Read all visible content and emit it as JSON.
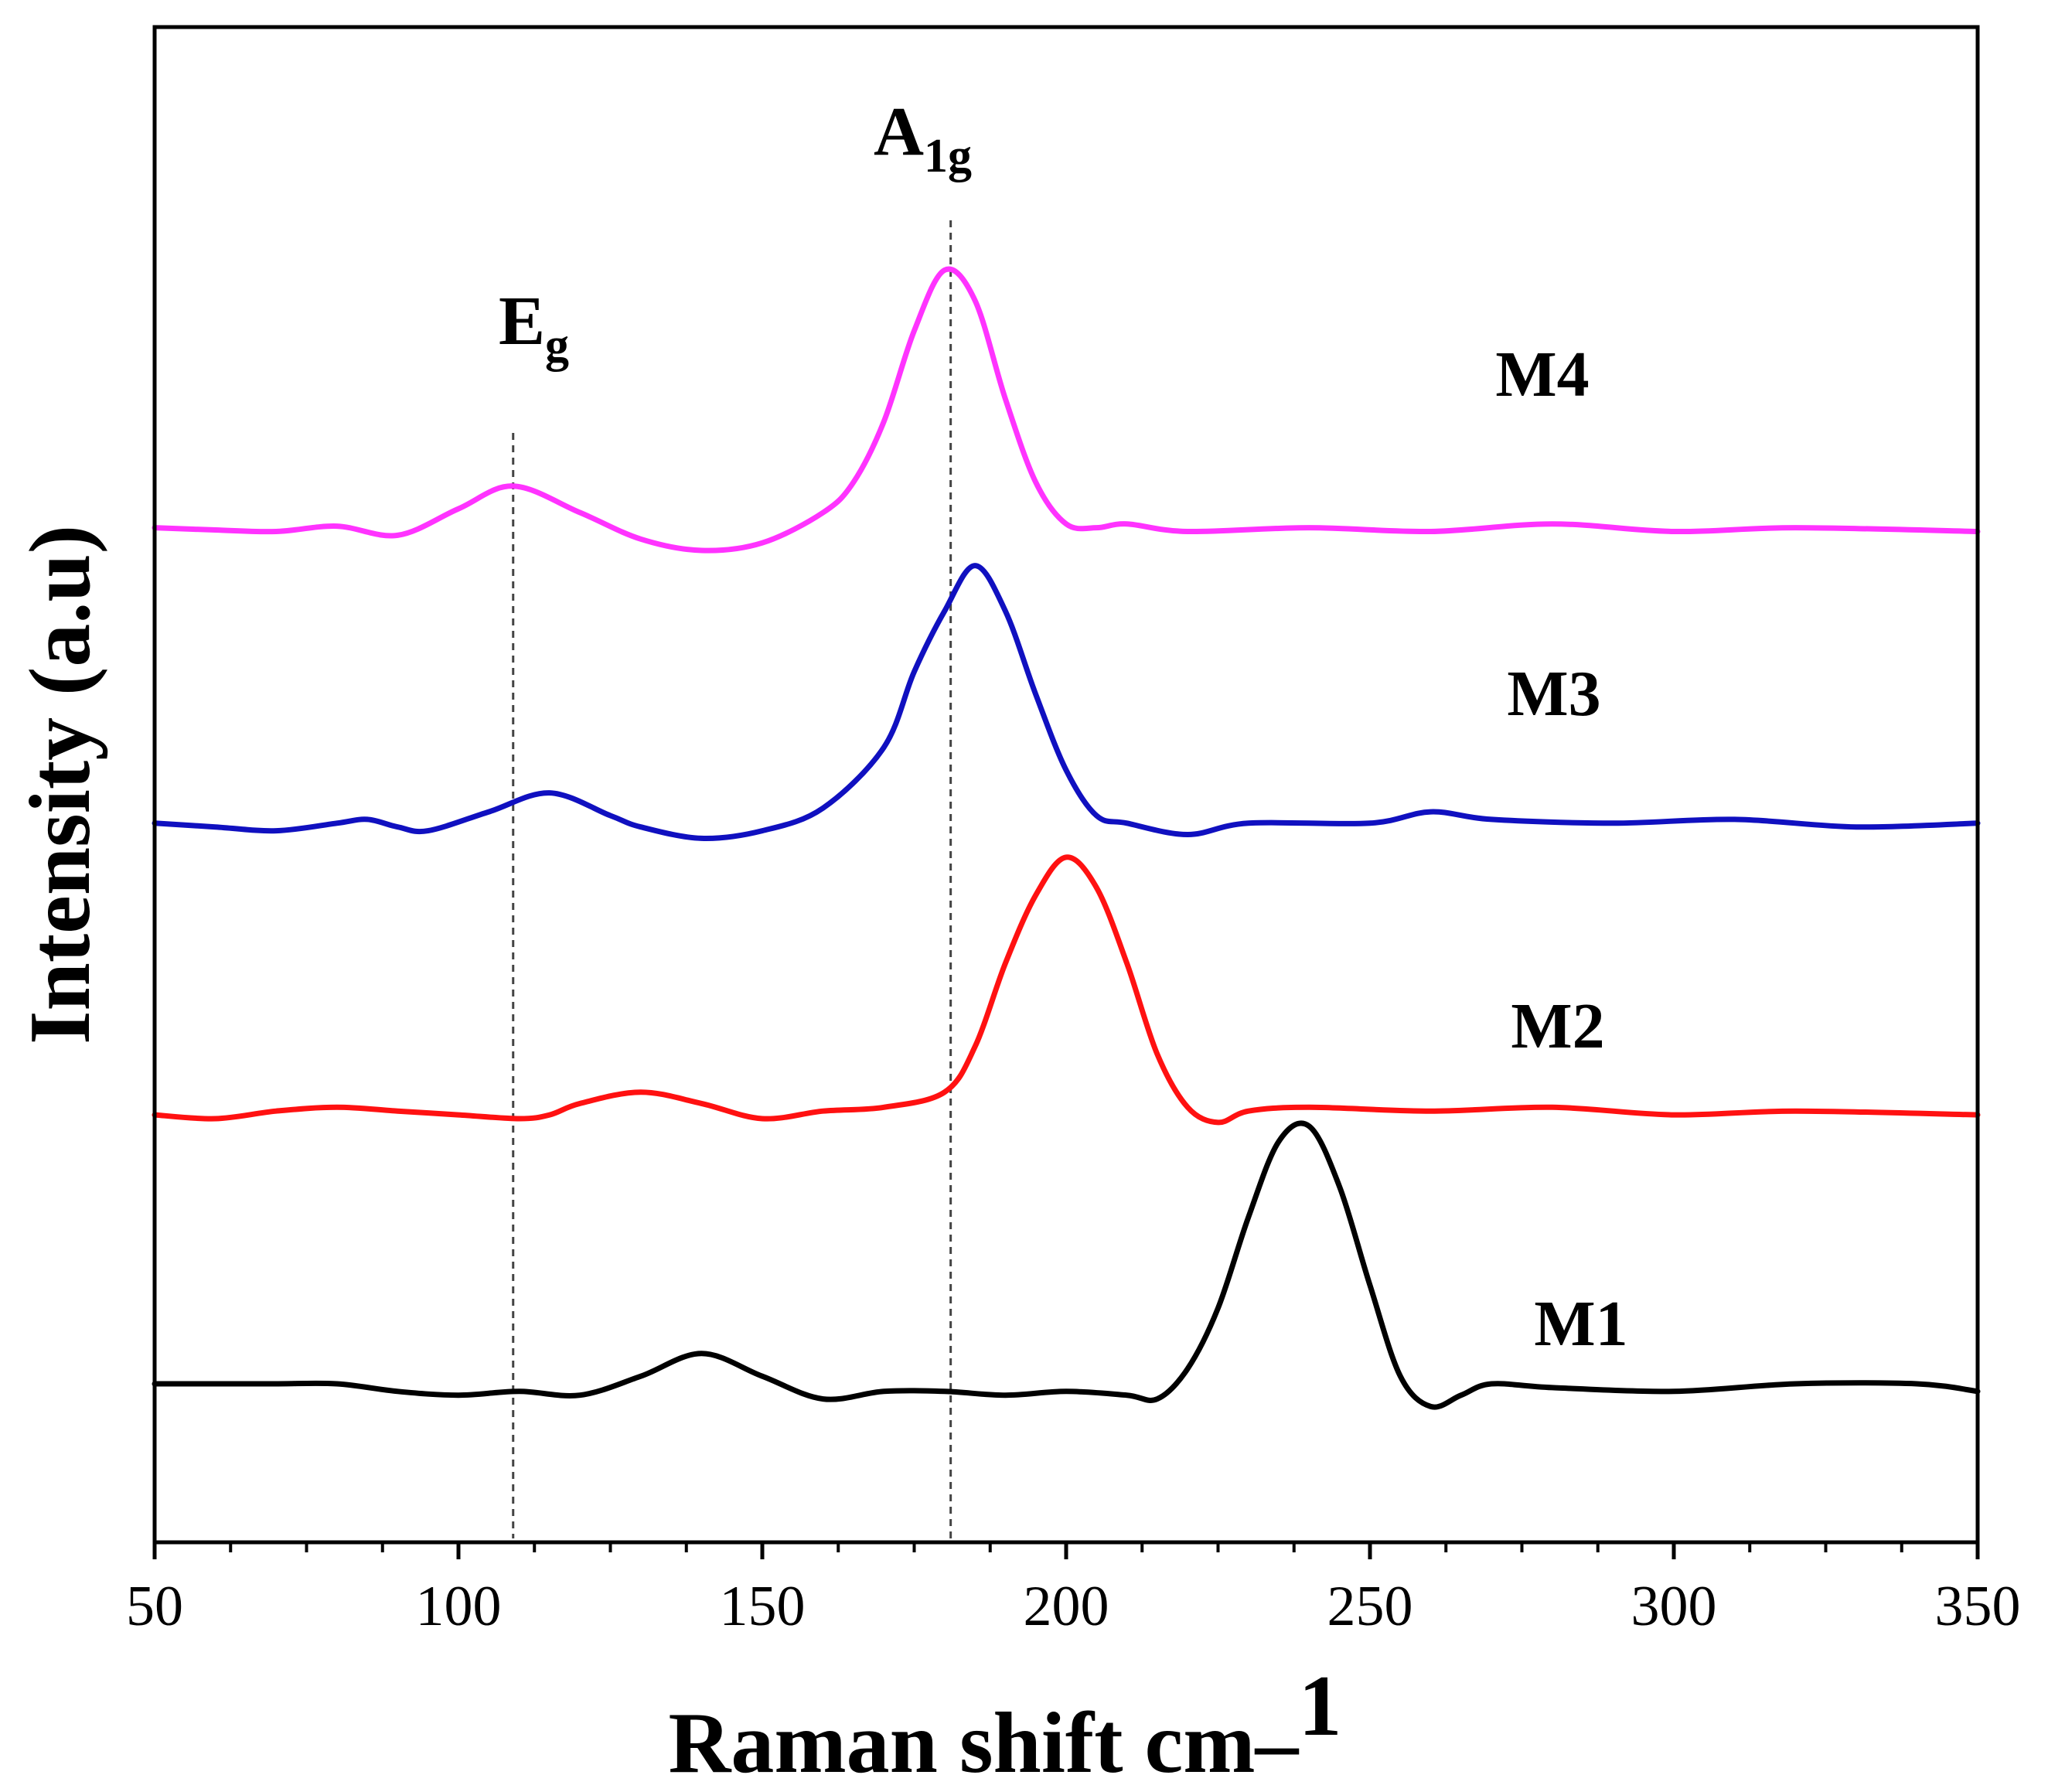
{
  "chart_data": {
    "type": "line",
    "title": "",
    "xlabel": "Raman shift cm–",
    "xlabel_sup": "1",
    "ylabel": "Intensity (a.u)",
    "xlim": [
      50,
      350
    ],
    "xticks": [
      50,
      100,
      150,
      200,
      250,
      300,
      350
    ],
    "x_minor_step": 12.5,
    "grid": false,
    "legend": "none",
    "annotations": [
      {
        "name": "eg",
        "main": "E",
        "sub": "g",
        "x": 109
      },
      {
        "name": "a1g",
        "main": "A",
        "sub": "1g",
        "x": 181
      }
    ],
    "series": [
      {
        "name": "M4",
        "color": "#ff33ff",
        "offset": 11.3,
        "x": [
          50,
          60,
          70,
          80,
          90,
          100,
          109,
          120,
          130,
          140,
          150,
          160,
          165,
          170,
          175,
          180,
          185,
          190,
          195,
          200,
          205,
          210,
          220,
          240,
          260,
          280,
          300,
          320,
          350
        ],
        "y": [
          0.0,
          -0.03,
          -0.05,
          0.02,
          -0.1,
          0.25,
          0.55,
          0.2,
          -0.15,
          -0.3,
          -0.2,
          0.2,
          0.6,
          1.4,
          2.6,
          3.4,
          3.0,
          1.7,
          0.6,
          0.05,
          0.0,
          0.05,
          -0.05,
          0.0,
          -0.05,
          0.05,
          -0.05,
          0.0,
          -0.05
        ]
      },
      {
        "name": "M3",
        "color": "#1010c0",
        "offset": 7.4,
        "x": [
          50,
          60,
          70,
          80,
          85,
          90,
          95,
          105,
          115,
          125,
          130,
          140,
          150,
          160,
          170,
          175,
          180,
          185,
          190,
          195,
          200,
          205,
          210,
          220,
          230,
          250,
          260,
          270,
          290,
          310,
          330,
          350
        ],
        "y": [
          0.0,
          -0.05,
          -0.1,
          0.0,
          0.05,
          -0.05,
          -0.1,
          0.15,
          0.4,
          0.1,
          -0.05,
          -0.2,
          -0.1,
          0.2,
          1.0,
          2.0,
          2.8,
          3.4,
          2.8,
          1.7,
          0.7,
          0.1,
          0.0,
          -0.15,
          0.0,
          0.0,
          0.15,
          0.05,
          0.0,
          0.05,
          -0.05,
          0.0
        ]
      },
      {
        "name": "M2",
        "color": "#ff1111",
        "offset": 3.55,
        "x": [
          50,
          60,
          70,
          80,
          90,
          100,
          110,
          115,
          120,
          130,
          140,
          150,
          160,
          170,
          180,
          185,
          190,
          195,
          200,
          205,
          210,
          215,
          220,
          225,
          230,
          240,
          260,
          280,
          300,
          320,
          350
        ],
        "y": [
          0.0,
          -0.05,
          0.05,
          0.1,
          0.05,
          0.0,
          -0.05,
          0.0,
          0.15,
          0.3,
          0.15,
          -0.05,
          0.05,
          0.1,
          0.3,
          0.9,
          2.0,
          2.9,
          3.4,
          3.0,
          2.0,
          0.8,
          0.1,
          -0.1,
          0.05,
          0.1,
          0.05,
          0.1,
          0.0,
          0.05,
          0.0
        ]
      },
      {
        "name": "M1",
        "color": "#000000",
        "offset": 0.0,
        "x": [
          50,
          60,
          70,
          80,
          90,
          100,
          110,
          120,
          130,
          140,
          150,
          160,
          170,
          180,
          190,
          200,
          210,
          215,
          220,
          225,
          230,
          235,
          240,
          245,
          250,
          255,
          260,
          265,
          270,
          280,
          300,
          320,
          340,
          350
        ],
        "y": [
          0.0,
          0.0,
          0.0,
          0.0,
          -0.1,
          -0.15,
          -0.1,
          -0.15,
          0.1,
          0.4,
          0.1,
          -0.2,
          -0.1,
          -0.1,
          -0.15,
          -0.1,
          -0.15,
          -0.2,
          0.2,
          1.0,
          2.2,
          3.2,
          3.4,
          2.6,
          1.3,
          0.1,
          -0.3,
          -0.15,
          0.0,
          -0.05,
          -0.1,
          0.0,
          0.0,
          -0.1
        ]
      }
    ]
  }
}
